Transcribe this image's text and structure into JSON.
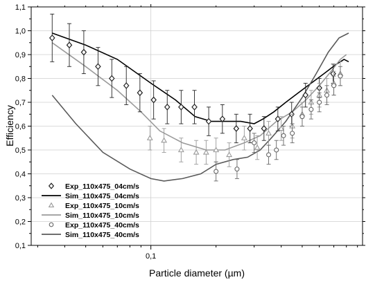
{
  "chart_data": {
    "type": "line",
    "xlabel": "Particle diameter (µm)",
    "ylabel": "Efficiency",
    "x_scale": "log",
    "xlim": [
      0.028,
      0.95
    ],
    "ylim": [
      0.1,
      1.1
    ],
    "grid": true,
    "legend_position": "bottom-left",
    "x_tick_labels": [
      {
        "value": 0.1,
        "label": "0,1"
      }
    ],
    "y_ticks": [
      0.1,
      0.2,
      0.3,
      0.4,
      0.5,
      0.6,
      0.7,
      0.8,
      0.9,
      1.0,
      1.1
    ],
    "y_tick_labels": [
      "0,1",
      "0,2",
      "0,3",
      "0,4",
      "0,5",
      "0,6",
      "0,7",
      "0,8",
      "0,9",
      "1,0",
      "1,1"
    ],
    "series": [
      {
        "name": "Exp_110x475_04cm/s",
        "kind": "scatter",
        "marker": "diamond",
        "color": "#222222",
        "x": [
          0.035,
          0.042,
          0.049,
          0.057,
          0.066,
          0.077,
          0.089,
          0.103,
          0.119,
          0.138,
          0.159,
          0.185,
          0.214,
          0.248,
          0.287,
          0.333,
          0.386,
          0.447,
          0.518,
          0.6,
          0.695
        ],
        "y": [
          0.97,
          0.94,
          0.91,
          0.85,
          0.8,
          0.77,
          0.74,
          0.71,
          0.68,
          0.68,
          0.68,
          0.62,
          0.63,
          0.59,
          0.59,
          0.59,
          0.63,
          0.65,
          0.73,
          0.76,
          0.82
        ],
        "err": [
          0.1,
          0.09,
          0.09,
          0.08,
          0.08,
          0.08,
          0.08,
          0.08,
          0.07,
          0.07,
          0.07,
          0.06,
          0.06,
          0.06,
          0.06,
          0.05,
          0.05,
          0.05,
          0.05,
          0.04,
          0.04
        ]
      },
      {
        "name": "Sim_110x475_04cm/s",
        "kind": "line",
        "color": "#000000",
        "x": [
          0.035,
          0.05,
          0.07,
          0.1,
          0.13,
          0.16,
          0.19,
          0.22,
          0.26,
          0.3,
          0.33,
          0.37,
          0.42,
          0.48,
          0.55,
          0.63,
          0.72,
          0.78,
          0.82
        ],
        "y": [
          0.99,
          0.94,
          0.88,
          0.78,
          0.71,
          0.64,
          0.62,
          0.62,
          0.62,
          0.61,
          0.63,
          0.66,
          0.7,
          0.74,
          0.78,
          0.82,
          0.86,
          0.88,
          0.87
        ]
      },
      {
        "name": "Exp_110x475_10cm/s",
        "kind": "scatter",
        "marker": "triangle",
        "color": "#999999",
        "x": [
          0.099,
          0.115,
          0.138,
          0.162,
          0.18,
          0.2,
          0.23,
          0.27,
          0.31,
          0.35,
          0.4,
          0.45,
          0.5,
          0.55,
          0.6,
          0.65,
          0.7,
          0.75
        ],
        "y": [
          0.55,
          0.54,
          0.5,
          0.49,
          0.49,
          0.5,
          0.48,
          0.55,
          0.51,
          0.57,
          0.59,
          0.6,
          0.65,
          0.7,
          0.73,
          0.75,
          0.78,
          0.82
        ],
        "err": [
          0.05,
          0.05,
          0.05,
          0.05,
          0.05,
          0.05,
          0.05,
          0.05,
          0.05,
          0.05,
          0.05,
          0.05,
          0.05,
          0.05,
          0.05,
          0.05,
          0.05,
          0.05
        ]
      },
      {
        "name": "Sim_110x475_10cm/s",
        "kind": "line",
        "color": "#9a9a9a",
        "x": [
          0.035,
          0.05,
          0.07,
          0.09,
          0.11,
          0.14,
          0.18,
          0.22,
          0.27,
          0.32,
          0.38,
          0.45,
          0.52,
          0.6,
          0.68,
          0.75,
          0.8
        ],
        "y": [
          0.95,
          0.85,
          0.75,
          0.66,
          0.58,
          0.53,
          0.5,
          0.5,
          0.53,
          0.56,
          0.62,
          0.66,
          0.71,
          0.77,
          0.83,
          0.88,
          0.9
        ]
      },
      {
        "name": "Exp_110x475_40cm/s",
        "kind": "scatter",
        "marker": "circle",
        "color": "#666666",
        "x": [
          0.2,
          0.25,
          0.3,
          0.35,
          0.38,
          0.41,
          0.45,
          0.5,
          0.55,
          0.6,
          0.65,
          0.7,
          0.75
        ],
        "y": [
          0.41,
          0.42,
          0.53,
          0.48,
          0.5,
          0.56,
          0.57,
          0.64,
          0.67,
          0.7,
          0.73,
          0.77,
          0.81
        ],
        "err": [
          0.04,
          0.04,
          0.04,
          0.04,
          0.04,
          0.04,
          0.04,
          0.04,
          0.04,
          0.04,
          0.04,
          0.04,
          0.04
        ]
      },
      {
        "name": "Sim_110x475_40cm/s",
        "kind": "line",
        "color": "#5a5a5a",
        "x": [
          0.035,
          0.045,
          0.06,
          0.08,
          0.1,
          0.115,
          0.14,
          0.17,
          0.2,
          0.24,
          0.28,
          0.32,
          0.36,
          0.42,
          0.5,
          0.58,
          0.66,
          0.74,
          0.82
        ],
        "y": [
          0.73,
          0.61,
          0.49,
          0.42,
          0.38,
          0.37,
          0.38,
          0.4,
          0.44,
          0.46,
          0.47,
          0.5,
          0.55,
          0.62,
          0.72,
          0.82,
          0.91,
          0.97,
          0.99
        ]
      }
    ]
  }
}
